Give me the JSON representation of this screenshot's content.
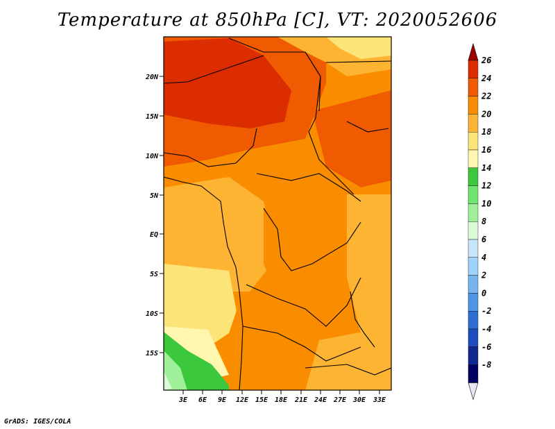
{
  "title": "Temperature at 850hPa [C], VT: 2020052606",
  "credit": "GrADS: IGES/COLA",
  "map": {
    "lat_labels": [
      "20N",
      "15N",
      "10N",
      "5N",
      "EQ",
      "5S",
      "10S",
      "15S"
    ],
    "lon_labels": [
      "3E",
      "6E",
      "9E",
      "12E",
      "15E",
      "18E",
      "21E",
      "24E",
      "27E",
      "30E",
      "33E"
    ]
  },
  "colorbar": {
    "labels": [
      "26",
      "24",
      "22",
      "20",
      "18",
      "16",
      "14",
      "12",
      "10",
      "8",
      "6",
      "4",
      "2",
      "0",
      "-2",
      "-4",
      "-6",
      "-8"
    ],
    "colors": [
      "#a00000",
      "#dc2d00",
      "#f05a00",
      "#fa8c00",
      "#fcb432",
      "#fde478",
      "#fff7b0",
      "#3cc83c",
      "#6ee66e",
      "#a0f09a",
      "#dcfad8",
      "#c8e6fa",
      "#a0d2fa",
      "#78b4f0",
      "#4b96e6",
      "#2d6ed2",
      "#1e4bbe",
      "#0f2891",
      "#000064",
      "#e6e6f5"
    ]
  },
  "colors": {
    "frame": "#000000",
    "border": "#000000"
  }
}
